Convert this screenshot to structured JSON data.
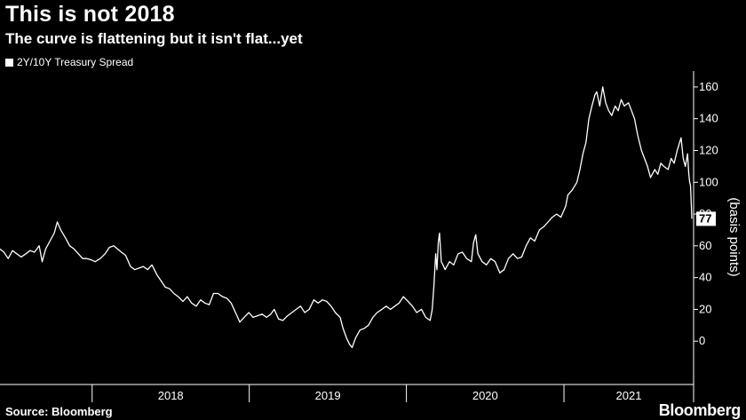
{
  "chart_data": {
    "type": "line",
    "title": "This is not 2018",
    "subtitle": "The curve is flattening but it isn't flat...yet",
    "legend": [
      "2Y/10Y Treasury Spread"
    ],
    "legend_placement": "top-left",
    "ylabel": "(basis points)",
    "ylim": [
      -20,
      170
    ],
    "yticks": [
      0,
      20,
      40,
      60,
      80,
      100,
      120,
      140,
      160
    ],
    "xlim": [
      "2017-06-01",
      "2021-10-25"
    ],
    "xtick_labels": [
      "2018",
      "2019",
      "2020",
      "2021"
    ],
    "last_value_label": "77",
    "grid": false,
    "series": [
      {
        "name": "2Y/10Y Treasury Spread",
        "color": "#ffffff",
        "points": [
          [
            "2017-06-01",
            58
          ],
          [
            "2017-06-10",
            56
          ],
          [
            "2017-06-20",
            52
          ],
          [
            "2017-06-30",
            57
          ],
          [
            "2017-07-10",
            55
          ],
          [
            "2017-07-20",
            53
          ],
          [
            "2017-07-31",
            55
          ],
          [
            "2017-08-10",
            57
          ],
          [
            "2017-08-20",
            56
          ],
          [
            "2017-08-31",
            60
          ],
          [
            "2017-09-07",
            50
          ],
          [
            "2017-09-15",
            58
          ],
          [
            "2017-09-25",
            63
          ],
          [
            "2017-10-05",
            68
          ],
          [
            "2017-10-12",
            75
          ],
          [
            "2017-10-20",
            70
          ],
          [
            "2017-10-31",
            65
          ],
          [
            "2017-11-10",
            60
          ],
          [
            "2017-11-20",
            58
          ],
          [
            "2017-11-30",
            55
          ],
          [
            "2017-12-10",
            52
          ],
          [
            "2017-12-20",
            52
          ],
          [
            "2017-12-31",
            51
          ],
          [
            "2018-01-08",
            50
          ],
          [
            "2018-01-20",
            52
          ],
          [
            "2018-01-31",
            55
          ],
          [
            "2018-02-10",
            59
          ],
          [
            "2018-02-20",
            60
          ],
          [
            "2018-03-01",
            58
          ],
          [
            "2018-03-10",
            56
          ],
          [
            "2018-03-20",
            54
          ],
          [
            "2018-03-31",
            47
          ],
          [
            "2018-04-10",
            45
          ],
          [
            "2018-04-20",
            46
          ],
          [
            "2018-04-30",
            47
          ],
          [
            "2018-05-10",
            45
          ],
          [
            "2018-05-20",
            48
          ],
          [
            "2018-05-31",
            42
          ],
          [
            "2018-06-10",
            38
          ],
          [
            "2018-06-20",
            34
          ],
          [
            "2018-06-30",
            33
          ],
          [
            "2018-07-10",
            30
          ],
          [
            "2018-07-20",
            28
          ],
          [
            "2018-07-31",
            25
          ],
          [
            "2018-08-10",
            28
          ],
          [
            "2018-08-20",
            24
          ],
          [
            "2018-08-31",
            22
          ],
          [
            "2018-09-10",
            26
          ],
          [
            "2018-09-20",
            24
          ],
          [
            "2018-09-30",
            23
          ],
          [
            "2018-10-10",
            30
          ],
          [
            "2018-10-20",
            30
          ],
          [
            "2018-10-31",
            28
          ],
          [
            "2018-11-10",
            27
          ],
          [
            "2018-11-20",
            24
          ],
          [
            "2018-11-30",
            18
          ],
          [
            "2018-12-10",
            12
          ],
          [
            "2018-12-20",
            15
          ],
          [
            "2018-12-31",
            18
          ],
          [
            "2019-01-10",
            15
          ],
          [
            "2019-01-20",
            16
          ],
          [
            "2019-01-31",
            17
          ],
          [
            "2019-02-10",
            15
          ],
          [
            "2019-02-20",
            17
          ],
          [
            "2019-02-28",
            20
          ],
          [
            "2019-03-10",
            14
          ],
          [
            "2019-03-20",
            13
          ],
          [
            "2019-03-31",
            16
          ],
          [
            "2019-04-10",
            18
          ],
          [
            "2019-04-20",
            20
          ],
          [
            "2019-04-30",
            22
          ],
          [
            "2019-05-10",
            18
          ],
          [
            "2019-05-20",
            20
          ],
          [
            "2019-05-31",
            26
          ],
          [
            "2019-06-10",
            24
          ],
          [
            "2019-06-20",
            26
          ],
          [
            "2019-06-30",
            25
          ],
          [
            "2019-07-10",
            22
          ],
          [
            "2019-07-20",
            18
          ],
          [
            "2019-07-31",
            15
          ],
          [
            "2019-08-07",
            8
          ],
          [
            "2019-08-15",
            2
          ],
          [
            "2019-08-22",
            -2
          ],
          [
            "2019-08-28",
            -4
          ],
          [
            "2019-09-05",
            2
          ],
          [
            "2019-09-15",
            7
          ],
          [
            "2019-09-25",
            8
          ],
          [
            "2019-10-05",
            10
          ],
          [
            "2019-10-15",
            15
          ],
          [
            "2019-10-25",
            18
          ],
          [
            "2019-11-05",
            20
          ],
          [
            "2019-11-15",
            22
          ],
          [
            "2019-11-25",
            20
          ],
          [
            "2019-12-05",
            22
          ],
          [
            "2019-12-15",
            24
          ],
          [
            "2019-12-25",
            28
          ],
          [
            "2020-01-05",
            25
          ],
          [
            "2020-01-15",
            22
          ],
          [
            "2020-01-25",
            18
          ],
          [
            "2020-02-05",
            20
          ],
          [
            "2020-02-15",
            15
          ],
          [
            "2020-02-25",
            13
          ],
          [
            "2020-03-01",
            20
          ],
          [
            "2020-03-05",
            35
          ],
          [
            "2020-03-09",
            55
          ],
          [
            "2020-03-12",
            45
          ],
          [
            "2020-03-15",
            62
          ],
          [
            "2020-03-18",
            68
          ],
          [
            "2020-03-22",
            50
          ],
          [
            "2020-03-26",
            48
          ],
          [
            "2020-03-31",
            45
          ],
          [
            "2020-04-10",
            50
          ],
          [
            "2020-04-20",
            48
          ],
          [
            "2020-04-30",
            55
          ],
          [
            "2020-05-10",
            56
          ],
          [
            "2020-05-20",
            52
          ],
          [
            "2020-05-31",
            50
          ],
          [
            "2020-06-05",
            62
          ],
          [
            "2020-06-10",
            67
          ],
          [
            "2020-06-15",
            55
          ],
          [
            "2020-06-25",
            50
          ],
          [
            "2020-07-05",
            48
          ],
          [
            "2020-07-15",
            52
          ],
          [
            "2020-07-25",
            50
          ],
          [
            "2020-08-05",
            43
          ],
          [
            "2020-08-15",
            45
          ],
          [
            "2020-08-25",
            52
          ],
          [
            "2020-09-05",
            55
          ],
          [
            "2020-09-15",
            52
          ],
          [
            "2020-09-25",
            53
          ],
          [
            "2020-10-05",
            60
          ],
          [
            "2020-10-15",
            65
          ],
          [
            "2020-10-25",
            63
          ],
          [
            "2020-11-05",
            70
          ],
          [
            "2020-11-15",
            72
          ],
          [
            "2020-11-25",
            75
          ],
          [
            "2020-12-05",
            78
          ],
          [
            "2020-12-15",
            80
          ],
          [
            "2020-12-25",
            78
          ],
          [
            "2021-01-05",
            85
          ],
          [
            "2021-01-10",
            92
          ],
          [
            "2021-01-20",
            95
          ],
          [
            "2021-01-31",
            100
          ],
          [
            "2021-02-07",
            108
          ],
          [
            "2021-02-14",
            118
          ],
          [
            "2021-02-21",
            125
          ],
          [
            "2021-02-28",
            140
          ],
          [
            "2021-03-07",
            148
          ],
          [
            "2021-03-14",
            155
          ],
          [
            "2021-03-18",
            157
          ],
          [
            "2021-03-25",
            148
          ],
          [
            "2021-04-01",
            160
          ],
          [
            "2021-04-08",
            150
          ],
          [
            "2021-04-15",
            145
          ],
          [
            "2021-04-22",
            142
          ],
          [
            "2021-04-30",
            148
          ],
          [
            "2021-05-07",
            145
          ],
          [
            "2021-05-14",
            152
          ],
          [
            "2021-05-21",
            148
          ],
          [
            "2021-05-31",
            150
          ],
          [
            "2021-06-07",
            145
          ],
          [
            "2021-06-14",
            140
          ],
          [
            "2021-06-21",
            130
          ],
          [
            "2021-06-30",
            120
          ],
          [
            "2021-07-07",
            115
          ],
          [
            "2021-07-14",
            110
          ],
          [
            "2021-07-21",
            103
          ],
          [
            "2021-07-31",
            108
          ],
          [
            "2021-08-07",
            105
          ],
          [
            "2021-08-14",
            112
          ],
          [
            "2021-08-21",
            110
          ],
          [
            "2021-08-31",
            108
          ],
          [
            "2021-09-07",
            115
          ],
          [
            "2021-09-14",
            112
          ],
          [
            "2021-09-21",
            120
          ],
          [
            "2021-09-30",
            128
          ],
          [
            "2021-10-05",
            115
          ],
          [
            "2021-10-10",
            110
          ],
          [
            "2021-10-15",
            118
          ],
          [
            "2021-10-18",
            105
          ],
          [
            "2021-10-20",
            100
          ],
          [
            "2021-10-22",
            98
          ],
          [
            "2021-10-24",
            85
          ],
          [
            "2021-10-25",
            77
          ]
        ]
      }
    ]
  },
  "footer": {
    "source": "Source: Bloomberg",
    "brand": "Bloomberg"
  }
}
